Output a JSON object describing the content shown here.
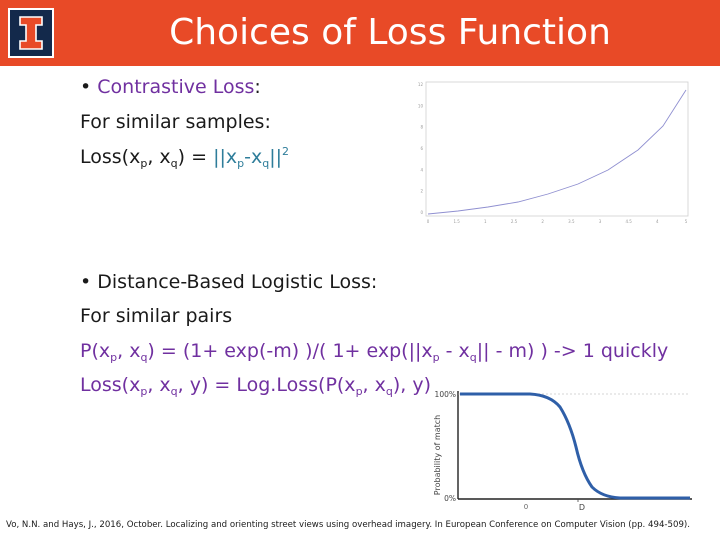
{
  "header": {
    "title": "Choices of Loss Function",
    "logo_icon": "block-i-logo",
    "bg_color": "#e84a27",
    "logo_color": "#13294b"
  },
  "section1": {
    "bullet": "•",
    "heading": "Contrastive Loss",
    "heading_colon": ":",
    "line1": "For similar samples:",
    "formula": {
      "a": "Loss(x",
      "a_sub": "p",
      "b": ", x",
      "b_sub": "q",
      "c": ") = ",
      "d": "||x",
      "d_sub": "p",
      "e": "-x",
      "e_sub": "q",
      "f": "||",
      "f_sup": "2"
    }
  },
  "section2": {
    "bullet": "•",
    "heading": "Distance-Based Logistic Loss",
    "heading_colon": ":",
    "line1": "For similar pairs",
    "prob": {
      "a": "P(x",
      "a_sub": "p",
      "b": ", x",
      "b_sub": "q",
      "c": ") = (1+ exp(-m) )/( 1+ exp(||x",
      "c_sub": "p",
      "d": " - x",
      "d_sub": "q",
      "e": "|| - m) ) -> 1 quickly"
    },
    "loss": {
      "a": "Loss(x",
      "a_sub": "p",
      "b": ", x",
      "b_sub": "q",
      "c": ", y) = Log.Loss(P(x",
      "c_sub": "p",
      "d": ", x",
      "d_sub": "q",
      "e": "), y)"
    }
  },
  "plot_contrastive": {
    "y_ticks": [
      "12",
      "10",
      "8",
      "6",
      "4",
      "2",
      "0"
    ],
    "x_ticks": [
      "0",
      "1.5",
      "1",
      "2.5",
      "2",
      "3.5",
      "3",
      "4.5",
      "4",
      "5"
    ]
  },
  "plot_logistic": {
    "ylabel": "Probability of match",
    "y_top": "100%",
    "y_bottom": "0%",
    "x_label": "D",
    "x_tick_left": "0"
  },
  "citation": "Vo, N.N. and Hays, J., 2016, October. Localizing and orienting street views using overhead imagery. In European Conference on Computer Vision (pp. 494-509)."
}
